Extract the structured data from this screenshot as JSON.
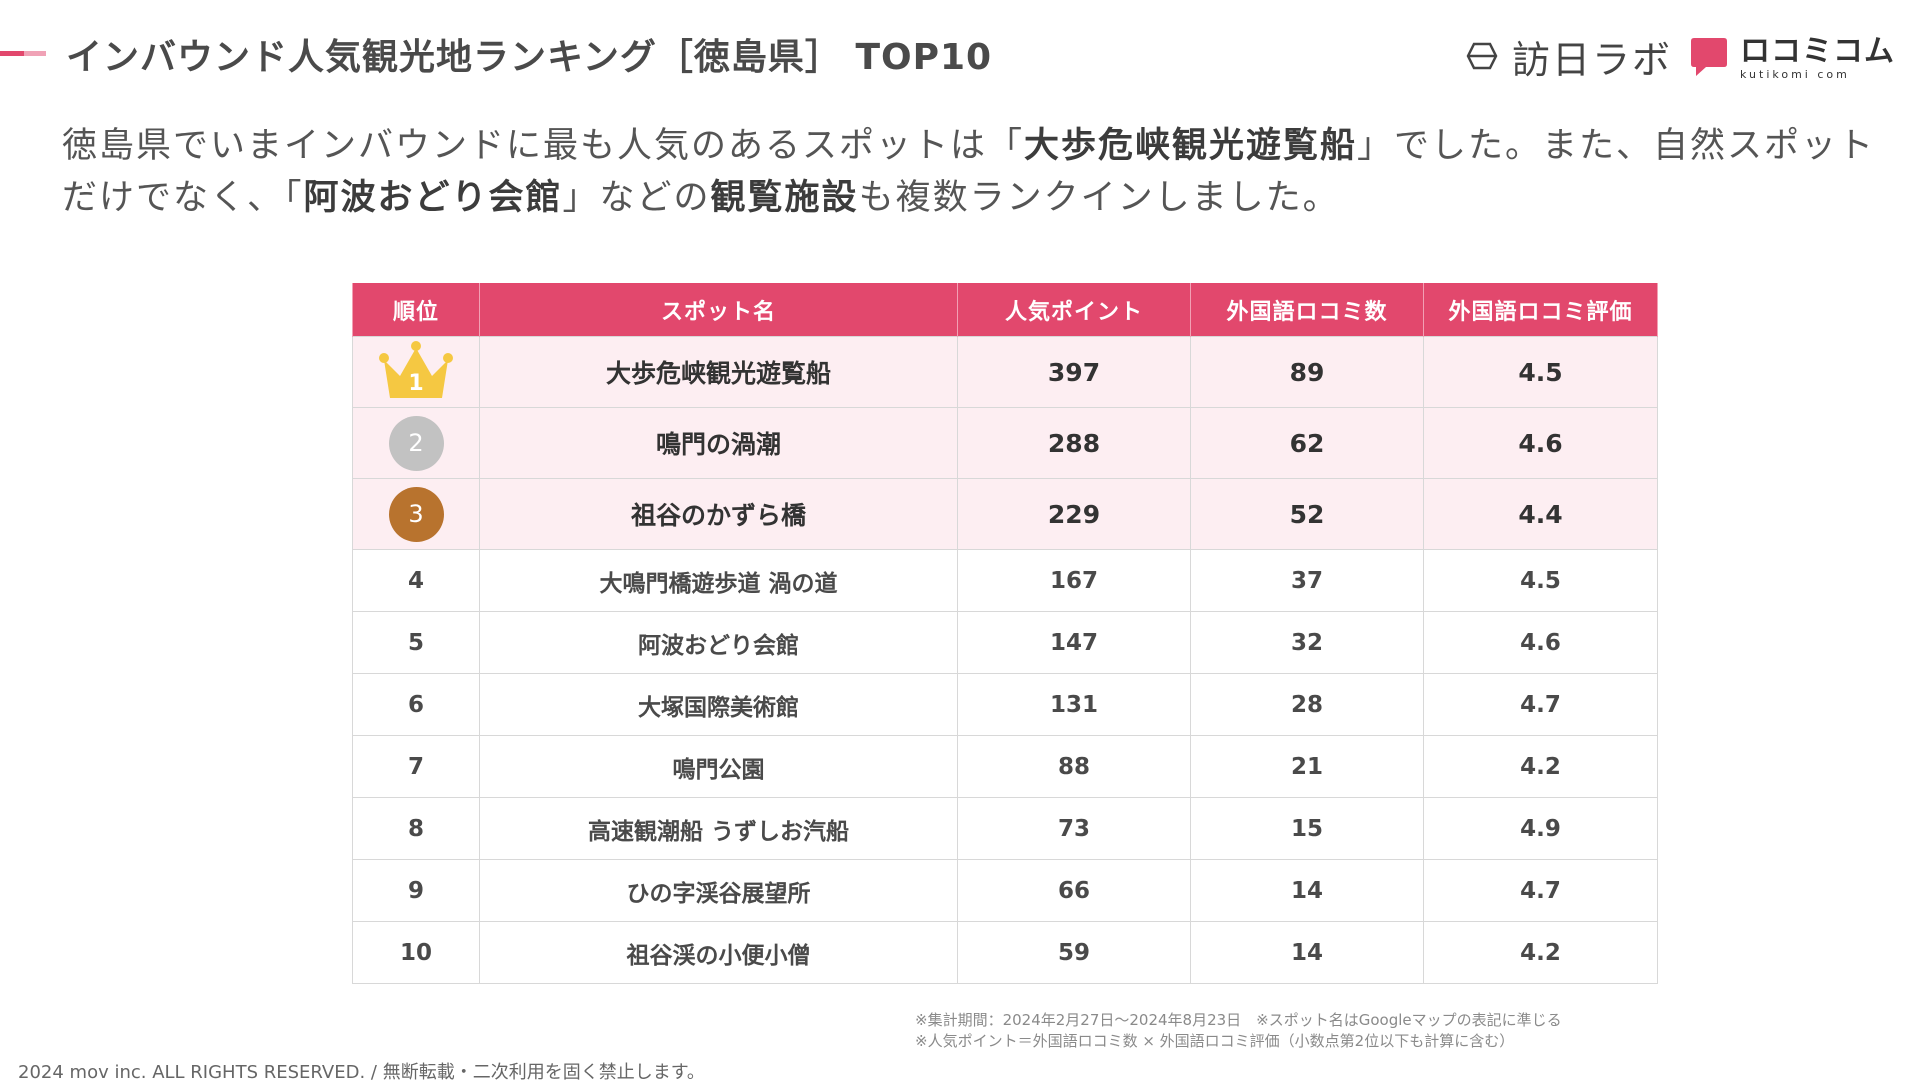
{
  "header": {
    "title": "インバウンド人気観光地ランキング［徳島県］ TOP10",
    "accent_color": "#e2486d"
  },
  "logos": {
    "houjin_labo": {
      "text": "訪日ラボ",
      "icon": "houjin-labo-logo-icon"
    },
    "kutikomi_com": {
      "text": "ロコミコム",
      "domain": "kutikomi com",
      "icon": "kutikomi-logo-icon"
    }
  },
  "lead": {
    "p1": "徳島県でいまインバウンドに最も人気のあるスポットは「",
    "b1": "大歩危峡観光遊覧船",
    "p2": "」でした。また、自然スポットだけでなく、「",
    "b2": "阿波おどり会館",
    "p3": "」などの",
    "b3": "観覧施設",
    "p4": "も複数ランクインしました。"
  },
  "table": {
    "headers": [
      "順位",
      "スポット名",
      "人気ポイント",
      "外国語ロコミ数",
      "外国語ロコミ評価"
    ],
    "header_color": "#e2486d",
    "rows": [
      {
        "rank": "1",
        "name": "大歩危峡観光遊覧船",
        "points": "397",
        "reviews": "89",
        "rating": "4.5",
        "medal": "crown-icon",
        "medal_color": "#f5c842"
      },
      {
        "rank": "2",
        "name": "鳴門の渦潮",
        "points": "288",
        "reviews": "62",
        "rating": "4.6",
        "medal": "silver-medal-icon",
        "medal_color": "#c2c2c2"
      },
      {
        "rank": "3",
        "name": "祖谷のかずら橋",
        "points": "229",
        "reviews": "52",
        "rating": "4.4",
        "medal": "bronze-medal-icon",
        "medal_color": "#b8732e"
      },
      {
        "rank": "4",
        "name": "大鳴門橋遊歩道 渦の道",
        "points": "167",
        "reviews": "37",
        "rating": "4.5"
      },
      {
        "rank": "5",
        "name": "阿波おどり会館",
        "points": "147",
        "reviews": "32",
        "rating": "4.6"
      },
      {
        "rank": "6",
        "name": "大塚国際美術館",
        "points": "131",
        "reviews": "28",
        "rating": "4.7"
      },
      {
        "rank": "7",
        "name": "鳴門公園",
        "points": "88",
        "reviews": "21",
        "rating": "4.2"
      },
      {
        "rank": "8",
        "name": "高速観潮船 うずしお汽船",
        "points": "73",
        "reviews": "15",
        "rating": "4.9"
      },
      {
        "rank": "9",
        "name": "ひの字渓谷展望所",
        "points": "66",
        "reviews": "14",
        "rating": "4.7"
      },
      {
        "rank": "10",
        "name": "祖谷渓の小便小僧",
        "points": "59",
        "reviews": "14",
        "rating": "4.2"
      }
    ]
  },
  "notes": [
    "※集計期間：2024年2月27日〜2024年8月23日　※スポット名はGoogleマップの表記に準じる",
    "※人気ポイント＝外国語ロコミ数 × 外国語ロコミ評価（小数点第2位以下も計算に含む）"
  ],
  "footer": {
    "copyright": "2024 mov inc. ALL RIGHTS RESERVED. / 無断転載・二次利用を固く禁止します。"
  }
}
